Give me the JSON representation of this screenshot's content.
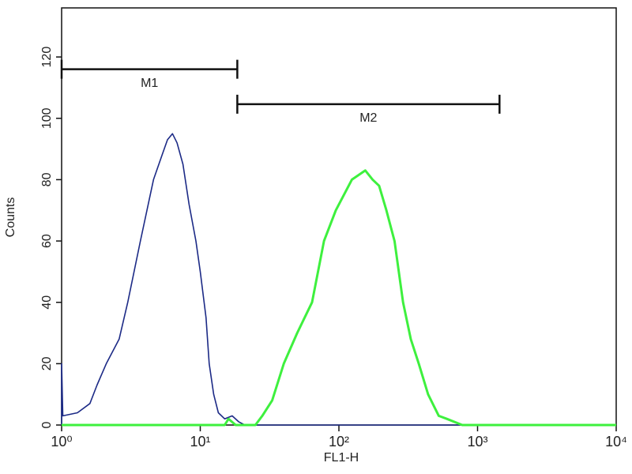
{
  "chart_data": {
    "type": "histogram-line",
    "xlabel": "FL1-H",
    "ylabel": "Counts",
    "xlog": true,
    "xlim": [
      1,
      10000
    ],
    "ylim": [
      0,
      136
    ],
    "xticks": [
      {
        "value": 1,
        "label": "10⁰"
      },
      {
        "value": 10,
        "label": "10¹"
      },
      {
        "value": 100,
        "label": "10²"
      },
      {
        "value": 1000,
        "label": "10³"
      },
      {
        "value": 10000,
        "label": "10⁴"
      }
    ],
    "yticks": [
      0,
      20,
      40,
      60,
      80,
      100,
      120
    ],
    "series": [
      {
        "color": "#1c2a86",
        "width": 1.6,
        "x": [
          1,
          1,
          1.02,
          1.3,
          1.6,
          1.8,
          2.1,
          2.6,
          3.0,
          3.7,
          4.6,
          5.3,
          5.8,
          6.3,
          6.8,
          7.5,
          8.3,
          9.3,
          10,
          11,
          11.6,
          12.5,
          13.5,
          15,
          17,
          19,
          21,
          10000
        ],
        "values": [
          0,
          20,
          3,
          4,
          7,
          13,
          20,
          28,
          40,
          60,
          80,
          88,
          93,
          95,
          92,
          85,
          72,
          60,
          50,
          35,
          20,
          10,
          4,
          2,
          3,
          1,
          0,
          0
        ]
      },
      {
        "color": "#3ef03e",
        "width": 3,
        "x": [
          1,
          15,
          16,
          18,
          25,
          28,
          33,
          40,
          50,
          64,
          78,
          95,
          124,
          155,
          175,
          195,
          220,
          252,
          290,
          330,
          377,
          440,
          525,
          600,
          775,
          10000
        ],
        "values": [
          0,
          0,
          2,
          0,
          0,
          3,
          8,
          20,
          30,
          40,
          60,
          70,
          80,
          83,
          80,
          78,
          70,
          60,
          40,
          28,
          20,
          10,
          3,
          2,
          0,
          0
        ]
      }
    ],
    "markers": [
      {
        "label": "M1",
        "x": [
          1,
          18.5
        ],
        "y": 116
      },
      {
        "label": "M2",
        "x": [
          18.5,
          1440
        ],
        "y": 104.6
      }
    ]
  }
}
